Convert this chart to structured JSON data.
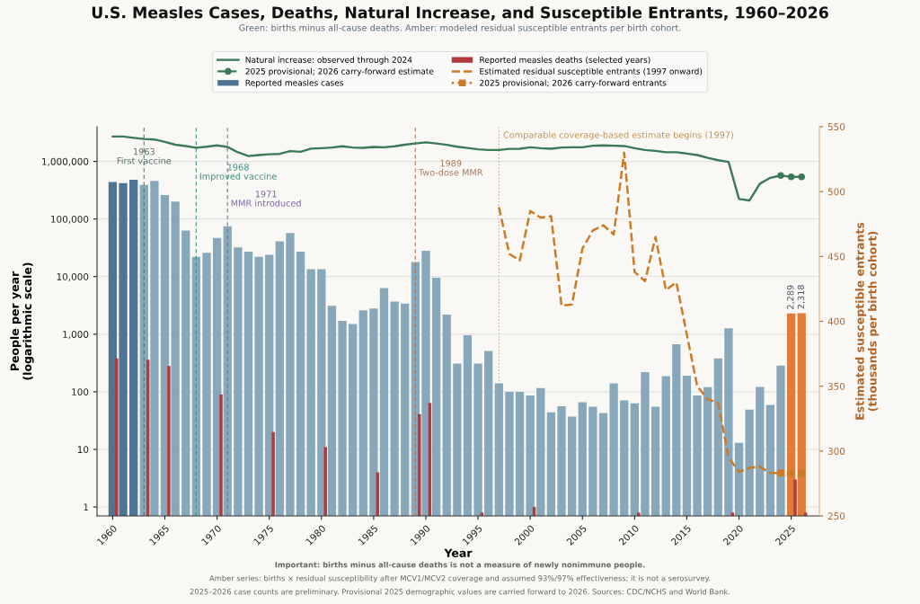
{
  "chart_data": {
    "type": "bar",
    "title": "U.S. Measles Cases, Deaths, Natural Increase, and Susceptible Entrants, 1960–2026",
    "subtitle": "Green: births minus all-cause deaths. Amber: modeled residual susceptible entrants per birth cohort.",
    "xlabel": "Year",
    "ylabel": "People per year\n(logarithmic scale)",
    "y2label": "Estimated susceptible entrants\n(thousands per birth cohort)",
    "x": [
      1960,
      1961,
      1962,
      1963,
      1964,
      1965,
      1966,
      1967,
      1968,
      1969,
      1970,
      1971,
      1972,
      1973,
      1974,
      1975,
      1976,
      1977,
      1978,
      1979,
      1980,
      1981,
      1982,
      1983,
      1984,
      1985,
      1986,
      1987,
      1988,
      1989,
      1990,
      1991,
      1992,
      1993,
      1994,
      1995,
      1996,
      1997,
      1998,
      1999,
      2000,
      2001,
      2002,
      2003,
      2004,
      2005,
      2006,
      2007,
      2008,
      2009,
      2010,
      2011,
      2012,
      2013,
      2014,
      2015,
      2016,
      2017,
      2018,
      2019,
      2020,
      2021,
      2022,
      2023,
      2024,
      2025,
      2026
    ],
    "series": [
      {
        "name": "Natural increase: observed through 2024",
        "type": "line",
        "color": "#3b7a56",
        "line_style": "solid",
        "marker": "none",
        "x": [
          1960,
          1961,
          1962,
          1963,
          1964,
          1965,
          1966,
          1967,
          1968,
          1969,
          1970,
          1971,
          1972,
          1973,
          1974,
          1975,
          1976,
          1977,
          1978,
          1979,
          1980,
          1981,
          1982,
          1983,
          1984,
          1985,
          1986,
          1987,
          1988,
          1989,
          1990,
          1991,
          1992,
          1993,
          1994,
          1995,
          1996,
          1997,
          1998,
          1999,
          2000,
          2001,
          2002,
          2003,
          2004,
          2005,
          2006,
          2007,
          2008,
          2009,
          2010,
          2011,
          2012,
          2013,
          2014,
          2015,
          2016,
          2017,
          2018,
          2019,
          2020,
          2021,
          2022,
          2023,
          2024
        ],
        "values": [
          2700000,
          2700000,
          2560000,
          2450000,
          2400000,
          2180000,
          1950000,
          1850000,
          1730000,
          1800000,
          1900000,
          1780000,
          1440000,
          1240000,
          1290000,
          1330000,
          1350000,
          1510000,
          1470000,
          1670000,
          1700000,
          1740000,
          1830000,
          1740000,
          1720000,
          1780000,
          1760000,
          1830000,
          1950000,
          2050000,
          2140000,
          2050000,
          1940000,
          1800000,
          1710000,
          1620000,
          1580000,
          1580000,
          1650000,
          1660000,
          1760000,
          1700000,
          1660000,
          1740000,
          1760000,
          1760000,
          1870000,
          1900000,
          1870000,
          1850000,
          1700000,
          1580000,
          1520000,
          1440000,
          1440000,
          1370000,
          1290000,
          1150000,
          1050000,
          980000,
          223000,
          210000,
          410000,
          520000,
          570000
        ]
      },
      {
        "name": "2025 provisional; 2026 carry-forward estimate",
        "type": "line",
        "color": "#3b7a56",
        "line_style": "dashed",
        "marker": "circle",
        "x": [
          2024,
          2025,
          2026
        ],
        "values": [
          570000,
          540000,
          540000
        ]
      },
      {
        "name": "Reported measles cases",
        "color": "#4f7595",
        "colors": [
          "#4f7595",
          "#4f7595",
          "#4f7595",
          "#87a8ba",
          "#87a8ba",
          "#87a8ba",
          "#87a8ba",
          "#87a8ba",
          "#87a8ba",
          "#87a8ba",
          "#87a8ba",
          "#87a8ba",
          "#87a8ba",
          "#87a8ba",
          "#87a8ba",
          "#87a8ba",
          "#87a8ba",
          "#87a8ba",
          "#87a8ba",
          "#87a8ba",
          "#87a8ba",
          "#87a8ba",
          "#87a8ba",
          "#87a8ba",
          "#87a8ba",
          "#87a8ba",
          "#87a8ba",
          "#87a8ba",
          "#87a8ba",
          "#87a8ba",
          "#87a8ba",
          "#87a8ba",
          "#87a8ba",
          "#87a8ba",
          "#87a8ba",
          "#87a8ba",
          "#87a8ba",
          "#87a8ba",
          "#87a8ba",
          "#87a8ba",
          "#87a8ba",
          "#87a8ba",
          "#87a8ba",
          "#87a8ba",
          "#87a8ba",
          "#87a8ba",
          "#87a8ba",
          "#87a8ba",
          "#87a8ba",
          "#87a8ba",
          "#87a8ba",
          "#87a8ba",
          "#87a8ba",
          "#87a8ba",
          "#87a8ba",
          "#87a8ba",
          "#87a8ba",
          "#87a8ba",
          "#87a8ba",
          "#87a8ba",
          "#87a8ba",
          "#87a8ba",
          "#87a8ba",
          "#87a8ba",
          "#87a8ba",
          "#e07b39",
          "#e07b39"
        ],
        "values": [
          440000,
          420000,
          480000,
          390000,
          460000,
          260000,
          200000,
          63000,
          22000,
          26000,
          47000,
          75000,
          32000,
          27000,
          22000,
          24000,
          41000,
          57000,
          27000,
          13500,
          13500,
          3100,
          1700,
          1500,
          2600,
          2800,
          6300,
          3700,
          3400,
          18000,
          28000,
          9600,
          2200,
          310,
          960,
          310,
          510,
          140,
          100,
          100,
          86,
          116,
          44,
          56,
          37,
          66,
          55,
          43,
          140,
          71,
          63,
          220,
          55,
          187,
          670,
          190,
          86,
          120,
          380,
          1270,
          13,
          49,
          121,
          59,
          285,
          2289,
          2318
        ],
        "value_labels": [
          null,
          null,
          null,
          null,
          null,
          null,
          null,
          null,
          null,
          null,
          null,
          null,
          null,
          null,
          null,
          null,
          null,
          null,
          null,
          null,
          null,
          null,
          null,
          null,
          null,
          null,
          null,
          null,
          null,
          null,
          null,
          null,
          null,
          null,
          null,
          null,
          null,
          null,
          null,
          null,
          null,
          null,
          null,
          null,
          null,
          null,
          null,
          null,
          null,
          null,
          null,
          null,
          null,
          null,
          null,
          null,
          null,
          null,
          null,
          null,
          null,
          null,
          null,
          null,
          null,
          "2,289",
          "2,318"
        ]
      },
      {
        "name": "Reported measles deaths (selected years)",
        "type": "bar",
        "color": "#b3393a",
        "x": [
          1960,
          1963,
          1965,
          1970,
          1975,
          1980,
          1985,
          1989,
          1990,
          1995,
          2000,
          2010,
          2019,
          2025,
          2026
        ],
        "values": [
          380,
          360,
          280,
          90,
          20,
          11,
          4,
          41,
          64,
          0.8,
          1,
          0.8,
          0.8,
          3,
          0.8
        ]
      },
      {
        "name": "Estimated residual susceptible entrants (1997 onward)",
        "type": "line",
        "axis": "y2",
        "color": "#cb7a26",
        "line_style": "dashed",
        "marker": "none",
        "x": [
          1997,
          1998,
          1999,
          2000,
          2001,
          2002,
          2003,
          2004,
          2005,
          2006,
          2007,
          2008,
          2009,
          2010,
          2011,
          2012,
          2013,
          2014,
          2015,
          2016,
          2017,
          2018,
          2019,
          2020,
          2021,
          2022,
          2023,
          2024
        ],
        "values": [
          488,
          452,
          447,
          485,
          480,
          481,
          412,
          413,
          456,
          470,
          474,
          467,
          530,
          438,
          431,
          465,
          424,
          430,
          390,
          350,
          340,
          337,
          295,
          284,
          287,
          288,
          283,
          283
        ]
      },
      {
        "name": "2025 provisional; 2026 carry-forward entrants",
        "type": "line",
        "axis": "y2",
        "color": "#cb7a26",
        "line_style": "dotted",
        "marker": "square",
        "x": [
          2024,
          2025,
          2026
        ],
        "values": [
          283,
          283,
          283
        ]
      }
    ],
    "xlim": [
      1958.5,
      2027.7
    ],
    "xticks": [
      1960,
      1965,
      1970,
      1975,
      1980,
      1985,
      1990,
      1995,
      2000,
      2005,
      2010,
      2015,
      2020,
      2025
    ],
    "log": "y",
    "ylim": [
      0.7,
      4000000
    ],
    "yticks": [
      1,
      10,
      100,
      {
        "value": 1000,
        "label": "1,000"
      },
      {
        "value": 10000,
        "label": "10,000"
      },
      {
        "value": 100000,
        "label": "100,000"
      },
      {
        "value": 1000000,
        "label": "1,000,000"
      }
    ],
    "y2lim": [
      250,
      550
    ],
    "y2ticks": [
      250,
      300,
      350,
      400,
      450,
      500,
      550
    ],
    "ref_lines": [
      {
        "axis": "x",
        "value": 1963,
        "label": "1963\nFirst vaccine",
        "color": "#567069",
        "line_style": "dashed"
      },
      {
        "axis": "x",
        "value": 1968,
        "label": "1968\nImproved vaccine",
        "color": "#3f8f86",
        "line_style": "dashed"
      },
      {
        "axis": "x",
        "value": 1971,
        "label": "1971\nMMR introduced",
        "color": "#7a6aa3",
        "line_style": "dashed"
      },
      {
        "axis": "x",
        "value": 1989,
        "label": "1989\nTwo-dose MMR",
        "color": "#a9785a",
        "line_style": "dashed"
      },
      {
        "axis": "x",
        "value": 1997,
        "label": "Comparable coverage-based estimate begins (1997)",
        "color": "#c4935a",
        "line_style": "dotted"
      }
    ],
    "grid": "y",
    "legend": "top",
    "annotations": [
      "Important: births minus all-cause deaths is not a measure of newly nonimmune people.",
      "Amber series: births × residual susceptibility after MCV1/MCV2 coverage and assumed 93%/97% effectiveness; it is not a serosurvey.",
      "2025–2026 case counts are preliminary. Provisional 2025 demographic values are carried forward to 2026. Sources: CDC/NCHS and World Bank."
    ]
  }
}
